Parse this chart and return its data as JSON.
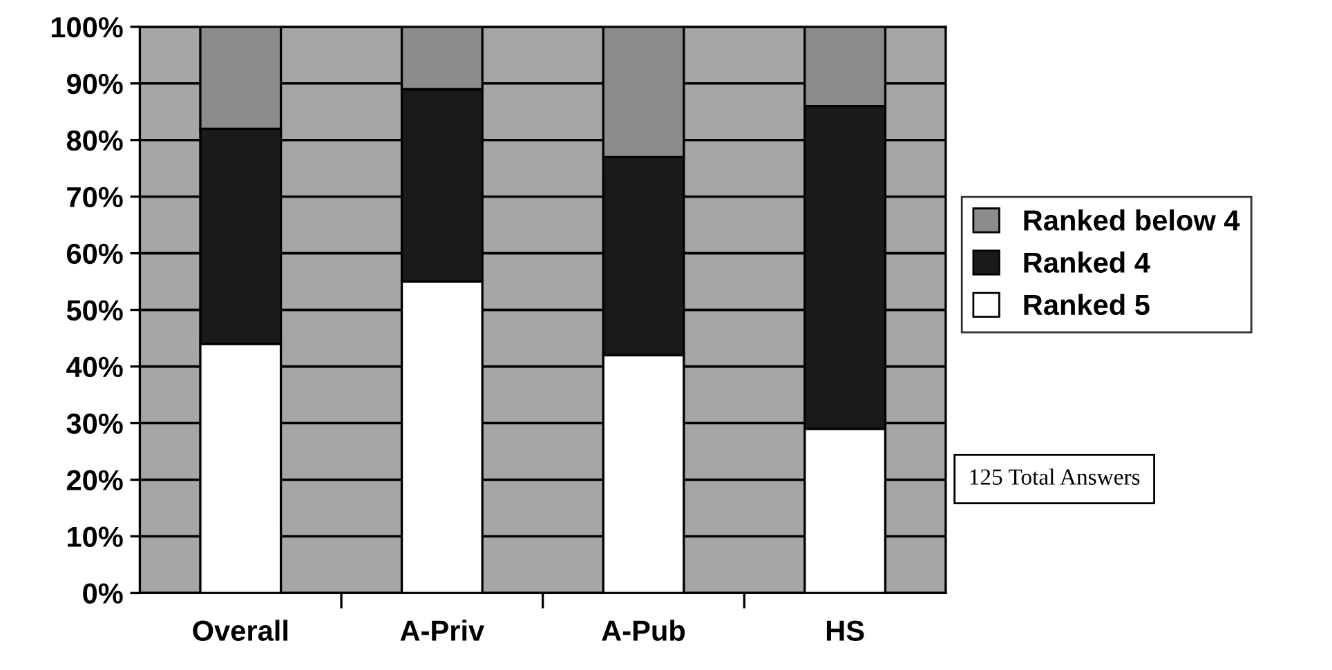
{
  "chart_data": {
    "type": "bar",
    "stacked": true,
    "categories": [
      "Overall",
      "A-Priv",
      "A-Pub",
      "HS"
    ],
    "series": [
      {
        "name": "Ranked 5",
        "color": "#ffffff",
        "values": [
          44,
          55,
          42,
          29
        ]
      },
      {
        "name": "Ranked 4",
        "color": "#1a1a1a",
        "values": [
          38,
          34,
          35,
          57
        ]
      },
      {
        "name": "Ranked below 4",
        "color": "#8c8c8c",
        "values": [
          18,
          11,
          23,
          14
        ]
      }
    ],
    "ylim": [
      0,
      100
    ],
    "yticks": [
      {
        "value": 0,
        "label": "0%"
      },
      {
        "value": 10,
        "label": "10%"
      },
      {
        "value": 20,
        "label": "20%"
      },
      {
        "value": 30,
        "label": "30%"
      },
      {
        "value": 40,
        "label": "40%"
      },
      {
        "value": 50,
        "label": "50%"
      },
      {
        "value": 60,
        "label": "60%"
      },
      {
        "value": 70,
        "label": "70%"
      },
      {
        "value": 80,
        "label": "80%"
      },
      {
        "value": 90,
        "label": "90%"
      },
      {
        "value": 100,
        "label": "100%"
      }
    ],
    "grid": "y",
    "legend": "right",
    "annotations": [
      "125 Total Answers"
    ]
  }
}
